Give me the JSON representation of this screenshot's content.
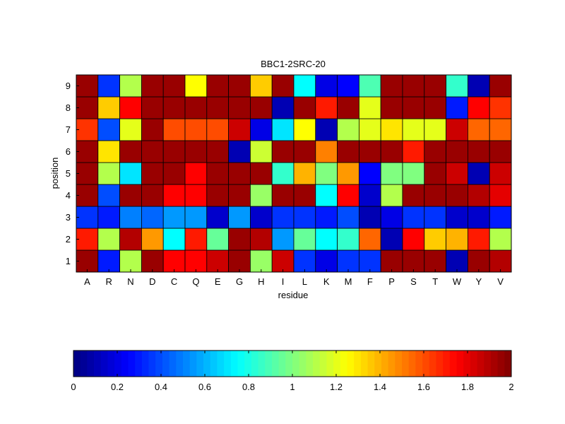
{
  "chart_data": {
    "type": "heatmap",
    "title": "BBC1-2SRC-20",
    "xlabel": "residue",
    "ylabel": "position",
    "categories": [
      "A",
      "R",
      "N",
      "D",
      "C",
      "Q",
      "E",
      "G",
      "H",
      "I",
      "L",
      "K",
      "M",
      "F",
      "P",
      "S",
      "T",
      "W",
      "Y",
      "V"
    ],
    "positions": [
      1,
      2,
      3,
      4,
      5,
      6,
      7,
      8,
      9
    ],
    "rows": [
      {
        "position": 1,
        "values": [
          1.95,
          0.3,
          1.1,
          1.95,
          1.75,
          1.75,
          1.85,
          1.95,
          1.05,
          1.85,
          0.35,
          0.2,
          0.35,
          0.35,
          1.95,
          1.95,
          1.95,
          0.1,
          1.95,
          1.9
        ]
      },
      {
        "position": 2,
        "values": [
          1.7,
          1.1,
          1.9,
          1.45,
          0.75,
          1.7,
          0.95,
          1.95,
          1.9,
          0.55,
          0.95,
          0.75,
          0.85,
          1.55,
          0.1,
          1.75,
          1.35,
          1.4,
          1.7,
          1.1
        ]
      },
      {
        "position": 3,
        "values": [
          0.35,
          0.3,
          0.5,
          0.45,
          0.55,
          0.55,
          0.15,
          0.55,
          0.15,
          0.35,
          0.35,
          0.3,
          0.4,
          0.1,
          0.2,
          0.35,
          0.35,
          0.15,
          0.15,
          0.3
        ]
      },
      {
        "position": 4,
        "values": [
          1.95,
          0.4,
          1.95,
          1.95,
          1.75,
          1.75,
          1.95,
          1.95,
          1.05,
          1.95,
          1.95,
          0.75,
          1.75,
          0.15,
          1.1,
          1.95,
          1.95,
          1.95,
          1.9,
          1.8
        ]
      },
      {
        "position": 5,
        "values": [
          1.95,
          1.1,
          0.7,
          1.95,
          1.95,
          1.75,
          1.95,
          1.95,
          1.95,
          0.85,
          1.4,
          1.0,
          1.45,
          0.25,
          1.0,
          1.0,
          1.95,
          1.85,
          0.1,
          1.85
        ]
      },
      {
        "position": 6,
        "values": [
          1.95,
          1.3,
          1.95,
          1.95,
          1.95,
          1.95,
          1.95,
          0.1,
          1.15,
          1.95,
          1.95,
          1.5,
          1.95,
          1.95,
          1.95,
          1.7,
          1.95,
          1.95,
          1.95,
          1.95
        ]
      },
      {
        "position": 7,
        "values": [
          1.65,
          0.4,
          1.2,
          1.95,
          1.6,
          1.6,
          1.6,
          1.85,
          0.2,
          0.7,
          1.25,
          0.1,
          1.1,
          1.2,
          1.3,
          1.2,
          1.2,
          1.85,
          1.55,
          1.55
        ]
      },
      {
        "position": 8,
        "values": [
          1.95,
          1.35,
          1.75,
          1.95,
          1.95,
          1.95,
          1.95,
          1.95,
          1.95,
          0.1,
          1.95,
          1.7,
          1.95,
          1.2,
          1.95,
          1.95,
          1.95,
          0.3,
          1.75,
          1.65
        ]
      },
      {
        "position": 9,
        "values": [
          1.95,
          0.35,
          1.1,
          1.95,
          1.95,
          1.25,
          1.95,
          1.95,
          1.35,
          1.95,
          0.75,
          0.2,
          0.25,
          0.9,
          1.95,
          1.95,
          1.95,
          0.85,
          0.1,
          1.95
        ]
      }
    ],
    "colorbar": {
      "ticks": [
        0,
        0.2,
        0.4,
        0.6,
        0.8,
        1,
        1.2,
        1.4,
        1.6,
        1.8,
        2
      ],
      "tick_labels": [
        "0",
        "0.2",
        "0.4",
        "0.6",
        "0.8",
        "1",
        "1.2",
        "1.4",
        "1.6",
        "1.8",
        "2"
      ],
      "range": [
        0,
        2
      ],
      "levels": 64,
      "placement": "bottom"
    },
    "colormap": "jet",
    "grid": false
  }
}
